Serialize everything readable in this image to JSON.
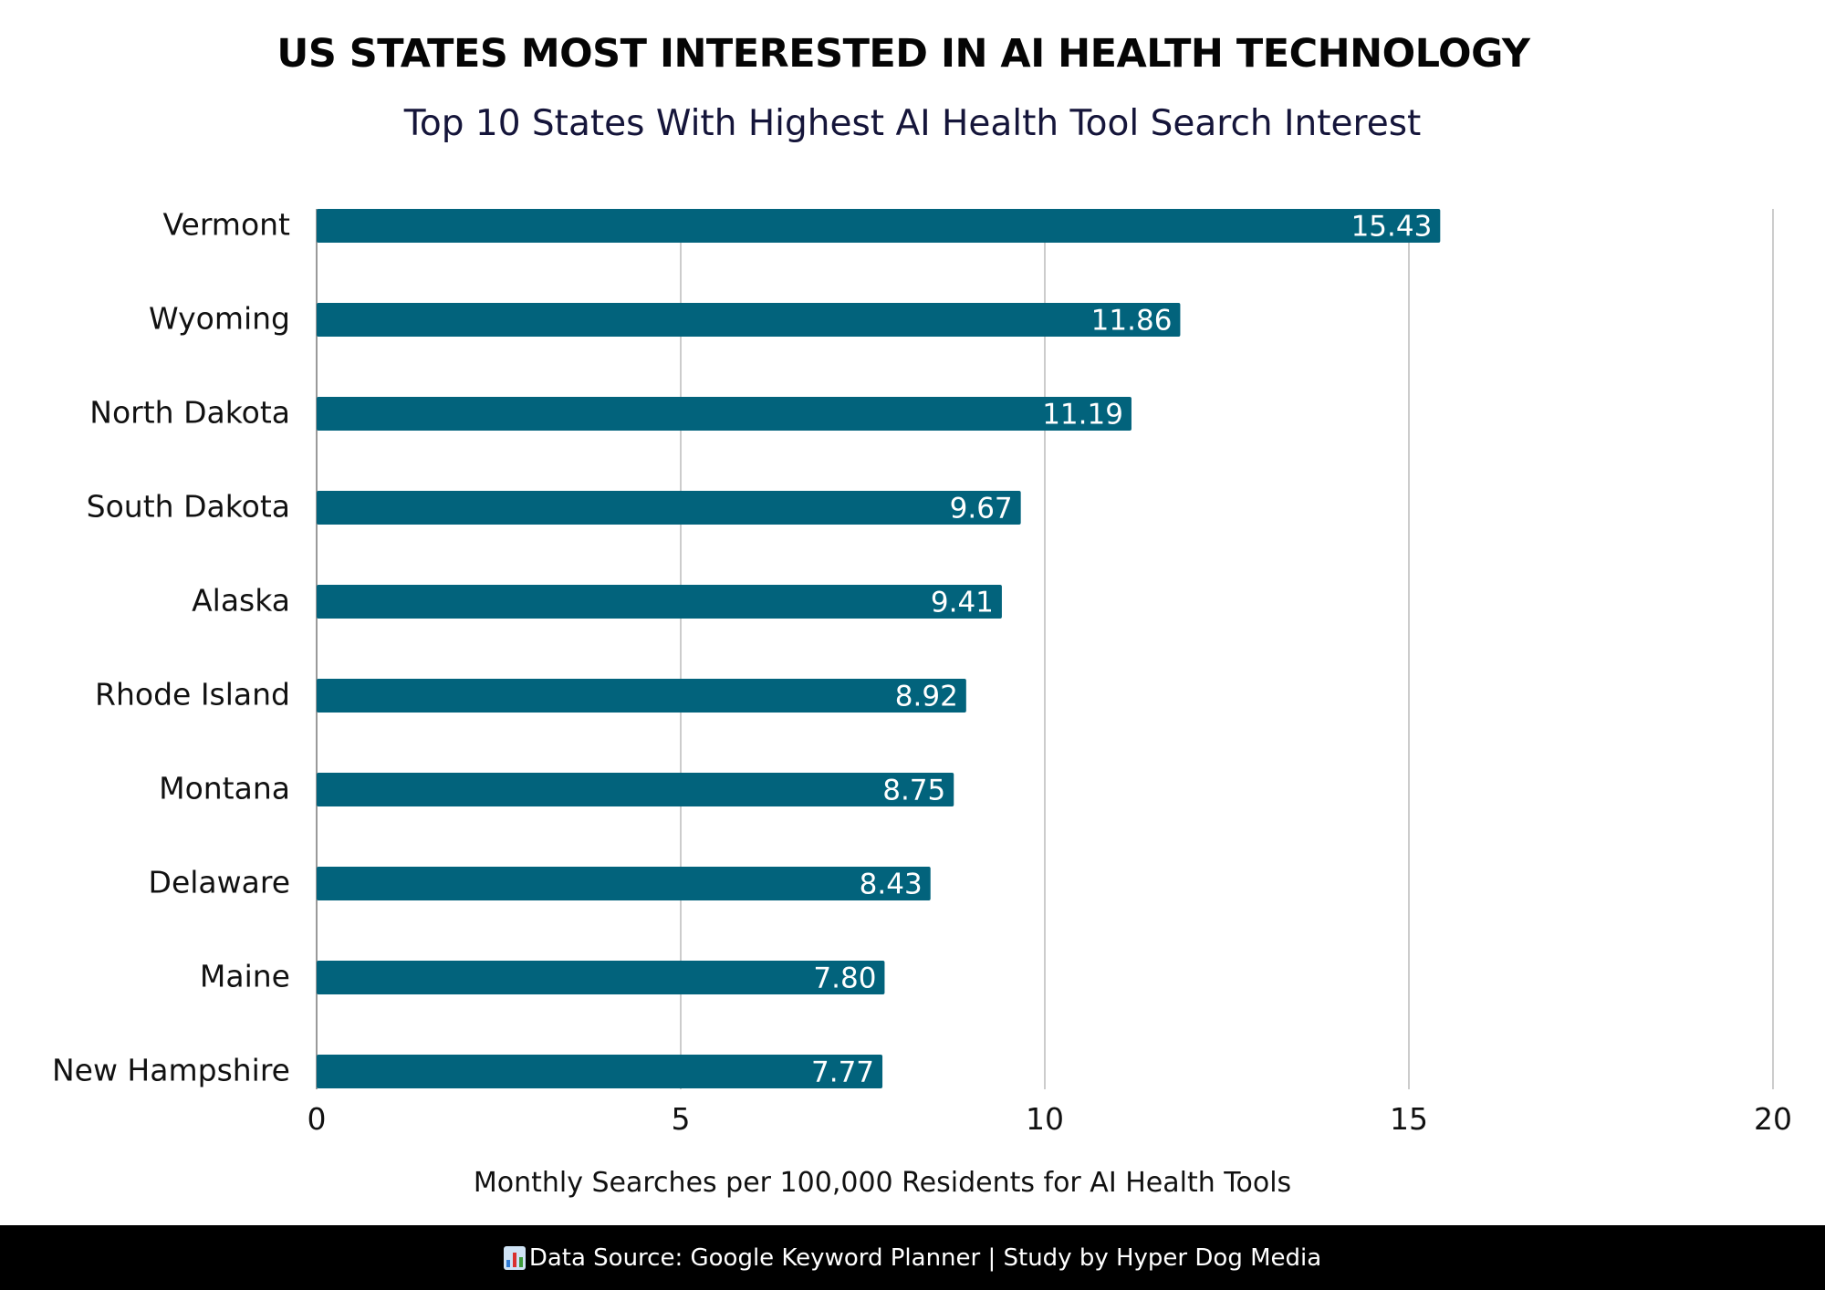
{
  "chart_data": {
    "type": "bar",
    "orientation": "horizontal",
    "title": "US STATES MOST INTERESTED IN AI HEALTH TECHNOLOGY",
    "subtitle": "Top 10 States With Highest AI Health Tool Search Interest",
    "categories": [
      "Vermont",
      "Wyoming",
      "North Dakota",
      "South Dakota",
      "Alaska",
      "Rhode Island",
      "Montana",
      "Delaware",
      "Maine",
      "New Hampshire"
    ],
    "values": [
      15.43,
      11.86,
      11.19,
      9.67,
      9.41,
      8.92,
      8.75,
      8.43,
      7.8,
      7.77
    ],
    "value_labels": [
      "15.43",
      "11.86",
      "11.19",
      "9.67",
      "9.41",
      "8.92",
      "8.75",
      "8.43",
      "7.80",
      "7.77"
    ],
    "xlabel": "Monthly Searches per 100,000 Residents for AI Health Tools",
    "ylabel": "",
    "xlim": [
      0,
      20
    ],
    "xticks": [
      0,
      5,
      10,
      15,
      20
    ],
    "xtick_labels": [
      "0",
      "5",
      "10",
      "15",
      "20"
    ],
    "grid": "vertical",
    "legend": "none",
    "bar_color": "#02637c"
  },
  "footer": {
    "icon": "bar-chart-icon",
    "text": "Data Source: Google Keyword Planner | Study by Hyper Dog Media"
  }
}
